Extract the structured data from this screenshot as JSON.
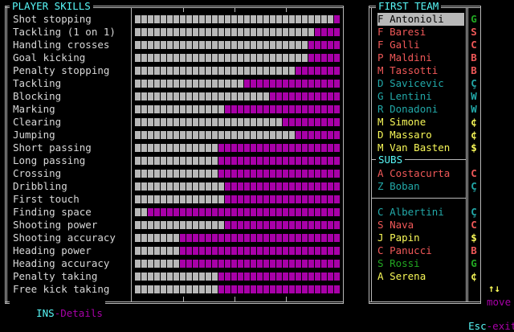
{
  "skills_panel": {
    "title": "PLAYER SKILLS",
    "footer_key": "INS",
    "footer_label": "-Details",
    "skills": [
      {
        "label": "Shot stopping",
        "level": 0.97
      },
      {
        "label": "Tackling (1 on 1)",
        "level": 0.88
      },
      {
        "label": "Handling crosses",
        "level": 0.85
      },
      {
        "label": "Goal kicking",
        "level": 0.85
      },
      {
        "label": "Penalty stopping",
        "level": 0.78
      },
      {
        "label": "Tackling",
        "level": 0.53
      },
      {
        "label": "Blocking",
        "level": 0.65
      },
      {
        "label": "Marking",
        "level": 0.44
      },
      {
        "label": "Clearing",
        "level": 0.72
      },
      {
        "label": "Jumping",
        "level": 0.78
      },
      {
        "label": "Short passing",
        "level": 0.41
      },
      {
        "label": "Long passing",
        "level": 0.41
      },
      {
        "label": "Crossing",
        "level": 0.41
      },
      {
        "label": "Dribbling",
        "level": 0.44
      },
      {
        "label": "First touch",
        "level": 0.44
      },
      {
        "label": "Finding space",
        "level": 0.06
      },
      {
        "label": "Shooting power",
        "level": 0.44
      },
      {
        "label": "Shooting accuracy",
        "level": 0.22
      },
      {
        "label": "Heading power",
        "level": 0.22
      },
      {
        "label": "Heading accuracy",
        "level": 0.22
      },
      {
        "label": "Penalty taking",
        "level": 0.41
      },
      {
        "label": "Free kick taking",
        "level": 0.41
      }
    ]
  },
  "team_panel": {
    "title": "FIRST TEAM",
    "subs_title": "SUBS",
    "first_team": [
      {
        "pos": "F",
        "name": "Antonioli",
        "rating": "G",
        "name_color": "#000000",
        "rating_color": "#22a822",
        "selected": true
      },
      {
        "pos": "F",
        "name": "Baresi",
        "rating": "S",
        "name_color": "#f05858",
        "rating_color": "#f05858",
        "selected": false
      },
      {
        "pos": "F",
        "name": "Galli",
        "rating": "C",
        "name_color": "#f05858",
        "rating_color": "#f05858",
        "selected": false
      },
      {
        "pos": "P",
        "name": "Maldini",
        "rating": "B",
        "name_color": "#f05858",
        "rating_color": "#f05858",
        "selected": false
      },
      {
        "pos": "M",
        "name": "Tassotti",
        "rating": "B",
        "name_color": "#f05858",
        "rating_color": "#f05858",
        "selected": false
      },
      {
        "pos": "D",
        "name": "Savicevic",
        "rating": "Ç",
        "name_color": "#22a8a8",
        "rating_color": "#22a8a8",
        "selected": false
      },
      {
        "pos": "G",
        "name": "Lentini",
        "rating": "W",
        "name_color": "#22a8a8",
        "rating_color": "#22a8a8",
        "selected": false
      },
      {
        "pos": "R",
        "name": "Donadoni",
        "rating": "W",
        "name_color": "#22a8a8",
        "rating_color": "#22a8a8",
        "selected": false
      },
      {
        "pos": "M",
        "name": "Simone",
        "rating": "¢",
        "name_color": "#f8f858",
        "rating_color": "#f8f858",
        "selected": false
      },
      {
        "pos": "D",
        "name": "Massaro",
        "rating": "¢",
        "name_color": "#f8f858",
        "rating_color": "#f8f858",
        "selected": false
      },
      {
        "pos": "M",
        "name": "Van Basten",
        "rating": "$",
        "name_color": "#f8f858",
        "rating_color": "#f8f858",
        "selected": false
      }
    ],
    "subs": [
      {
        "pos": "A",
        "name": "Costacurta",
        "rating": "C",
        "name_color": "#f05858",
        "rating_color": "#f05858"
      },
      {
        "pos": "Z",
        "name": "Boban",
        "rating": "Ç",
        "name_color": "#22a8a8",
        "rating_color": "#22a8a8"
      }
    ],
    "reserves": [
      {
        "pos": "C",
        "name": "Albertini",
        "rating": "Ç",
        "name_color": "#22a8a8",
        "rating_color": "#22a8a8"
      },
      {
        "pos": "S",
        "name": "Nava",
        "rating": "C",
        "name_color": "#f05858",
        "rating_color": "#f05858"
      },
      {
        "pos": "J",
        "name": "Papin",
        "rating": "$",
        "name_color": "#f8f858",
        "rating_color": "#f8f858"
      },
      {
        "pos": "C",
        "name": "Panucci",
        "rating": "B",
        "name_color": "#f05858",
        "rating_color": "#f05858"
      },
      {
        "pos": "S",
        "name": "Rossi",
        "rating": "G",
        "name_color": "#22a822",
        "rating_color": "#22a822"
      },
      {
        "pos": "A",
        "name": "Serena",
        "rating": "¢",
        "name_color": "#f8f858",
        "rating_color": "#f8f858"
      }
    ]
  },
  "controls": {
    "move_arrows": "↑↓",
    "move_label": "move",
    "exit_key": "Esc",
    "exit_label": "-exit"
  },
  "colors": {
    "frame": "#b8b8b8",
    "title": "#58f8f8",
    "bar_filled": "#b8b8b8",
    "bar_empty": "#a800a8",
    "hint": "#a800a8"
  }
}
